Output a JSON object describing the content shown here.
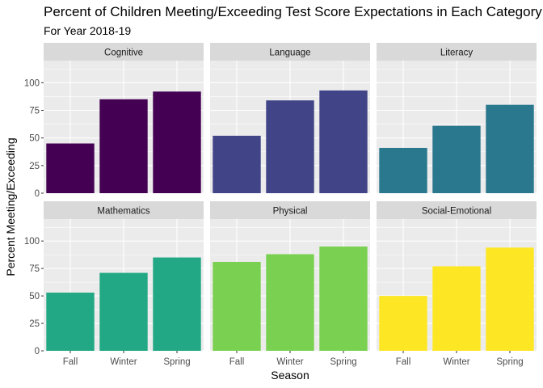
{
  "chart_data": {
    "type": "bar",
    "title": "Percent of Children Meeting/Exceeding Test Score Expectations in Each Category",
    "subtitle": "For Year 2018-19",
    "xlabel": "Season",
    "ylabel": "Percent Meeting/Exceeding",
    "categories": [
      "Fall",
      "Winter",
      "Spring"
    ],
    "ylim": [
      0,
      120
    ],
    "yticks": [
      0,
      25,
      50,
      75,
      100
    ],
    "grid": true,
    "legend": "none",
    "facets": [
      {
        "name": "Cognitive",
        "values": [
          45,
          85,
          92
        ],
        "color": "#440154"
      },
      {
        "name": "Language",
        "values": [
          52,
          84,
          93
        ],
        "color": "#414487"
      },
      {
        "name": "Literacy",
        "values": [
          41,
          61,
          80
        ],
        "color": "#2a788e"
      },
      {
        "name": "Mathematics",
        "values": [
          53,
          71,
          85
        ],
        "color": "#22a884"
      },
      {
        "name": "Physical",
        "values": [
          81,
          88,
          95
        ],
        "color": "#7ad151"
      },
      {
        "name": "Social-Emotional",
        "values": [
          50,
          77,
          94
        ],
        "color": "#fde725"
      }
    ]
  }
}
